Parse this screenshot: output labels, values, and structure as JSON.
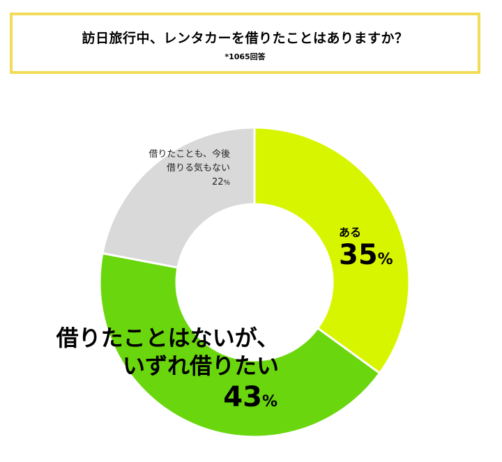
{
  "title": {
    "main": "訪日旅行中、レンタカーを借りたことはありますか？",
    "note": "*1065回答"
  },
  "chart_data": {
    "type": "pie",
    "donut": true,
    "slices": [
      {
        "label": "ある",
        "value": 35,
        "color": "#d8f500"
      },
      {
        "label": "借りたことはないが、いずれ借りたい",
        "label_lines": [
          "借りたことはないが、",
          "いずれ借りたい"
        ],
        "value": 43,
        "color": "#6ad60d"
      },
      {
        "label": "借りたことも、今後借りる気もない",
        "label_lines": [
          "借りたことも、今後",
          "借りる気もない"
        ],
        "value": 22,
        "color": "#d9d9d9"
      }
    ],
    "unit": "%"
  }
}
